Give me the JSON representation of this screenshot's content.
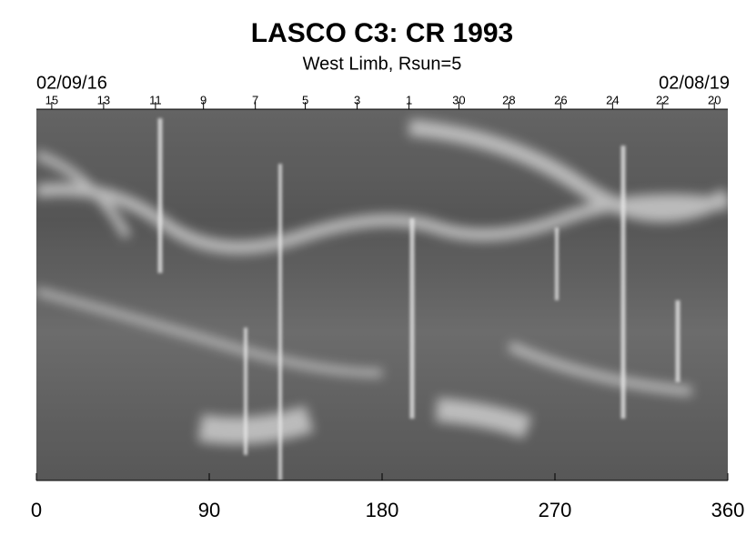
{
  "chart_data": {
    "type": "image",
    "title": "LASCO C3: CR 1993",
    "subtitle": "West Limb, Rsun=5",
    "start_date": "02/09/16",
    "end_date": "02/08/19",
    "xlim": [
      0,
      360
    ],
    "xticks": [
      0,
      90,
      180,
      270,
      360
    ],
    "top_ticks": [
      {
        "value": 8,
        "label": "15"
      },
      {
        "value": 35,
        "label": "13"
      },
      {
        "value": 62,
        "label": "11"
      },
      {
        "value": 87,
        "label": "9"
      },
      {
        "value": 114,
        "label": "7"
      },
      {
        "value": 140,
        "label": "5"
      },
      {
        "value": 167,
        "label": "3"
      },
      {
        "value": 194,
        "label": "1"
      },
      {
        "value": 220,
        "label": "30"
      },
      {
        "value": 246,
        "label": "28"
      },
      {
        "value": 273,
        "label": "26"
      },
      {
        "value": 300,
        "label": "24"
      },
      {
        "value": 326,
        "label": "22"
      },
      {
        "value": 353,
        "label": "20"
      }
    ]
  }
}
